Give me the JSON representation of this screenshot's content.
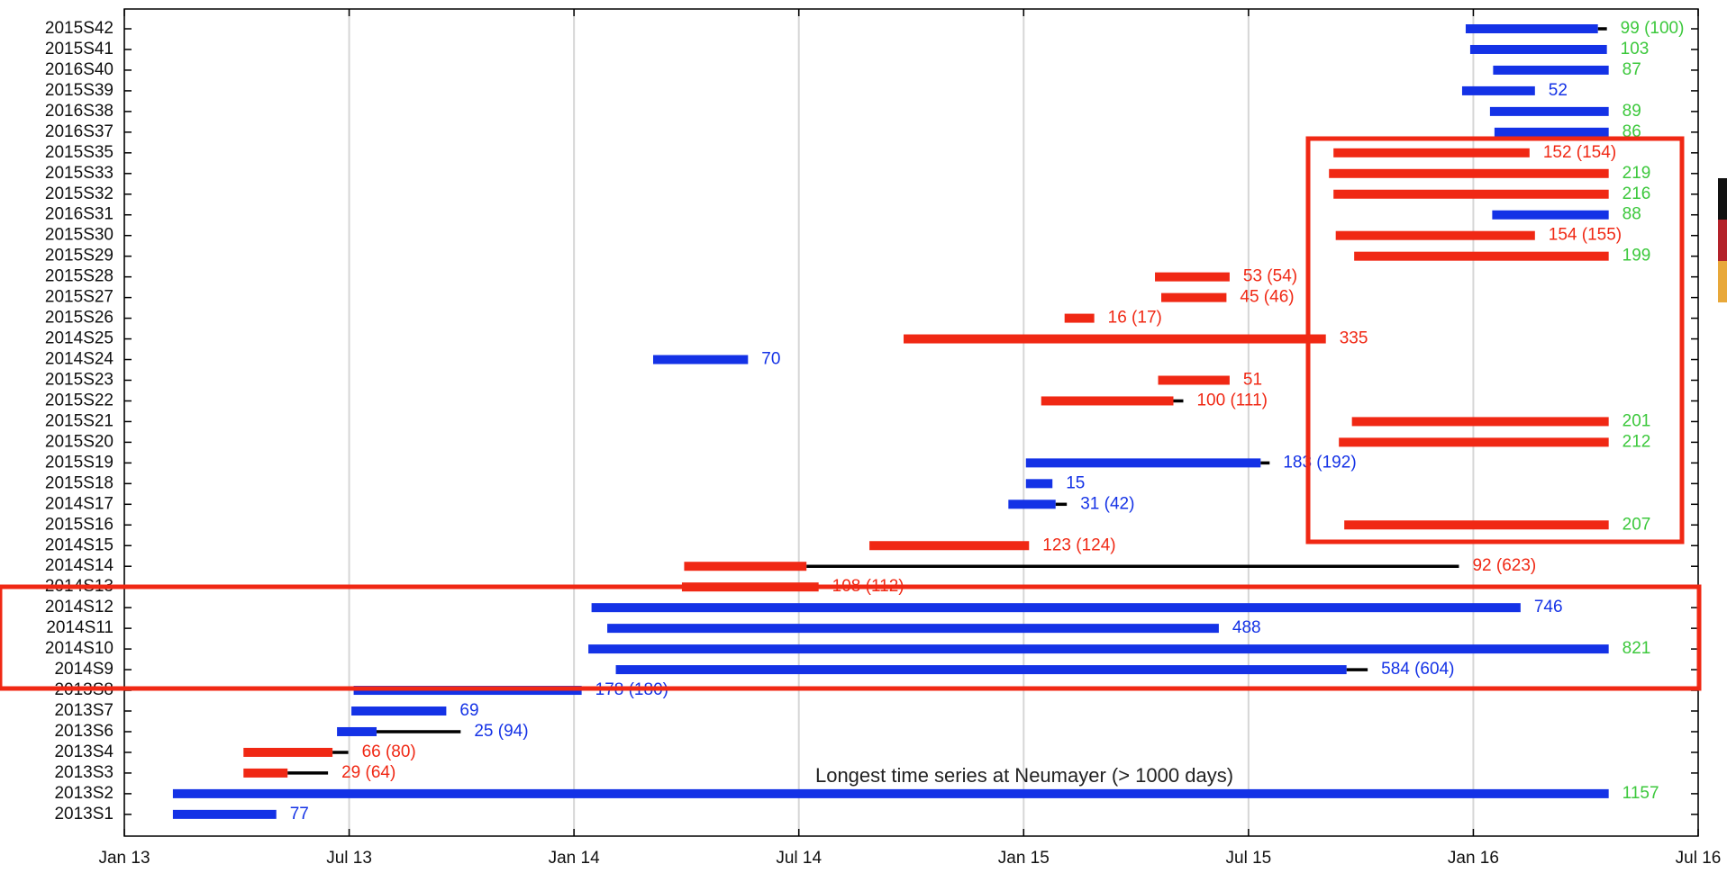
{
  "chart_data": {
    "type": "gantt",
    "annotation": "Longest time series at Neumayer (> 1000 days)",
    "categories": [
      "2015S42",
      "2015S41",
      "2016S40",
      "2015S39",
      "2016S38",
      "2016S37",
      "2015S35",
      "2015S33",
      "2015S32",
      "2016S31",
      "2015S30",
      "2015S29",
      "2015S28",
      "2015S27",
      "2015S26",
      "2014S25",
      "2014S24",
      "2015S23",
      "2015S22",
      "2015S21",
      "2015S20",
      "2015S19",
      "2015S18",
      "2014S17",
      "2015S16",
      "2014S15",
      "2014S14",
      "2014S13",
      "2014S12",
      "2014S11",
      "2014S10",
      "2014S9",
      "2013S8",
      "2013S7",
      "2013S6",
      "2013S4",
      "2013S3",
      "2013S2",
      "2013S1"
    ],
    "start": [
      2015.983,
      2015.993,
      2016.044,
      2015.975,
      2016.037,
      2016.047,
      2015.689,
      2015.679,
      2015.689,
      2016.042,
      2015.694,
      2015.735,
      2015.292,
      2015.306,
      2015.091,
      2014.733,
      2014.176,
      2015.299,
      2015.039,
      2015.73,
      2015.701,
      2015.005,
      2015.005,
      2014.966,
      2015.713,
      2014.657,
      2014.245,
      2014.24,
      2014.039,
      2014.074,
      2014.032,
      2014.093,
      2013.51,
      2013.505,
      2013.473,
      2013.265,
      2013.265,
      2013.108,
      2013.108
    ],
    "end": [
      2016.277,
      2016.297,
      2016.301,
      2016.137,
      2016.301,
      2016.301,
      2016.125,
      2016.301,
      2016.301,
      2016.301,
      2016.137,
      2016.301,
      2015.458,
      2015.451,
      2015.157,
      2015.672,
      2014.387,
      2015.458,
      2015.333,
      2016.301,
      2016.301,
      2015.527,
      2015.064,
      2015.071,
      2016.301,
      2015.012,
      2014.517,
      2014.544,
      2016.105,
      2015.434,
      2016.301,
      2015.718,
      2014.017,
      2013.716,
      2013.561,
      2013.463,
      2013.363,
      2016.301,
      2013.338
    ],
    "extent": [
      2016.297,
      null,
      null,
      null,
      null,
      null,
      null,
      null,
      null,
      null,
      null,
      null,
      null,
      null,
      null,
      null,
      null,
      null,
      2015.355,
      null,
      null,
      2015.547,
      null,
      2015.096,
      null,
      null,
      2015.968,
      null,
      null,
      null,
      null,
      2015.765,
      null,
      null,
      2013.748,
      2013.498,
      2013.453,
      null,
      null
    ],
    "colors": [
      "#1432e6",
      "#1432e6",
      "#1432e6",
      "#1432e6",
      "#1432e6",
      "#1432e6",
      "#f02814",
      "#f02814",
      "#f02814",
      "#1432e6",
      "#f02814",
      "#f02814",
      "#f02814",
      "#f02814",
      "#f02814",
      "#f02814",
      "#1432e6",
      "#f02814",
      "#f02814",
      "#f02814",
      "#f02814",
      "#1432e6",
      "#1432e6",
      "#1432e6",
      "#f02814",
      "#f02814",
      "#f02814",
      "#f02814",
      "#1432e6",
      "#1432e6",
      "#1432e6",
      "#1432e6",
      "#1432e6",
      "#1432e6",
      "#1432e6",
      "#f02814",
      "#f02814",
      "#1432e6",
      "#1432e6"
    ],
    "labels": [
      "99 (100)",
      "103",
      "87",
      "52",
      "89",
      "86",
      "152 (154)",
      "219",
      "216",
      "88",
      "154 (155)",
      "199",
      "53 (54)",
      "45 (46)",
      "16 (17)",
      "335",
      "70",
      "51",
      "100 (111)",
      "201",
      "212",
      "183 (192)",
      "15",
      "31 (42)",
      "207",
      "123 (124)",
      "92 (623)",
      "108 (112)",
      "746",
      "488",
      "821",
      "584 (604)",
      "178 (180)",
      "69",
      "25 (94)",
      "66 (80)",
      "29 (64)",
      "1157",
      "77"
    ],
    "label_colors": [
      "#3cc83c",
      "#3cc83c",
      "#3cc83c",
      "#1432e6",
      "#3cc83c",
      "#3cc83c",
      "#f02814",
      "#3cc83c",
      "#3cc83c",
      "#3cc83c",
      "#f02814",
      "#3cc83c",
      "#f02814",
      "#f02814",
      "#f02814",
      "#f02814",
      "#1432e6",
      "#f02814",
      "#f02814",
      "#3cc83c",
      "#3cc83c",
      "#1432e6",
      "#1432e6",
      "#1432e6",
      "#3cc83c",
      "#f02814",
      "#f02814",
      "#f02814",
      "#1432e6",
      "#1432e6",
      "#3cc83c",
      "#1432e6",
      "#1432e6",
      "#1432e6",
      "#1432e6",
      "#f02814",
      "#f02814",
      "#3cc83c",
      "#1432e6"
    ],
    "whisker_color": "#000000",
    "xlim": [
      2013,
      2016.5
    ],
    "xticks": [
      {
        "value": 2013,
        "label": "Jan 13"
      },
      {
        "value": 2013.5,
        "label": "Jul 13"
      },
      {
        "value": 2014,
        "label": "Jan 14"
      },
      {
        "value": 2014.5,
        "label": "Jul 14"
      },
      {
        "value": 2015,
        "label": "Jan 15"
      },
      {
        "value": 2015.5,
        "label": "Jul 15"
      },
      {
        "value": 2016,
        "label": "Jan 16"
      },
      {
        "value": 2016.5,
        "label": "Jul 16"
      }
    ],
    "grid": true
  }
}
